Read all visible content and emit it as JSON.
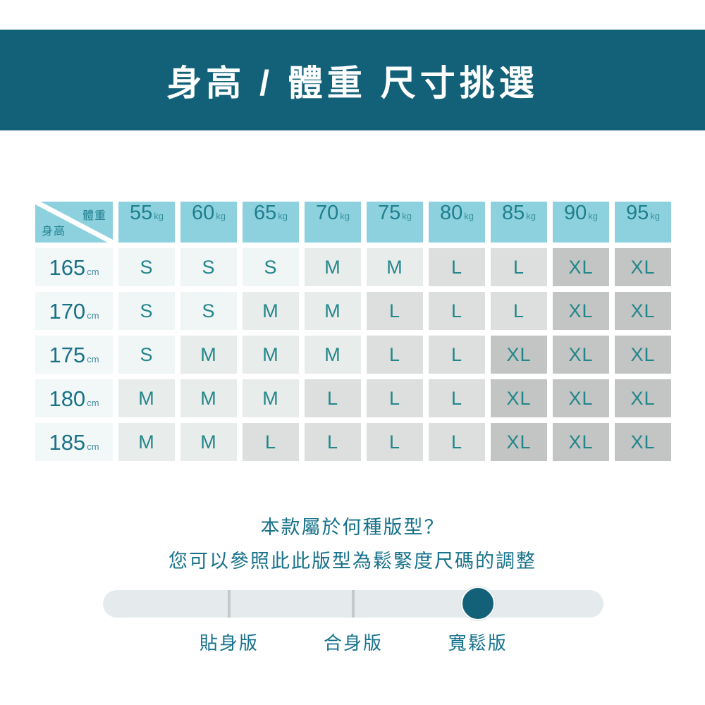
{
  "banner": {
    "title": "身高 / 體重 尺寸挑選"
  },
  "table": {
    "corner": {
      "top_right": "體重",
      "bottom_left": "身高"
    },
    "weight_unit": "kg",
    "height_unit": "cm",
    "weights": [
      "55",
      "60",
      "65",
      "70",
      "75",
      "80",
      "85",
      "90",
      "95"
    ],
    "rows": [
      {
        "height": "165",
        "sizes": [
          "S",
          "S",
          "S",
          "M",
          "M",
          "L",
          "L",
          "XL",
          "XL"
        ]
      },
      {
        "height": "170",
        "sizes": [
          "S",
          "S",
          "M",
          "M",
          "L",
          "L",
          "L",
          "XL",
          "XL"
        ]
      },
      {
        "height": "175",
        "sizes": [
          "S",
          "M",
          "M",
          "M",
          "L",
          "L",
          "XL",
          "XL",
          "XL"
        ]
      },
      {
        "height": "180",
        "sizes": [
          "M",
          "M",
          "M",
          "L",
          "L",
          "L",
          "XL",
          "XL",
          "XL"
        ]
      },
      {
        "height": "185",
        "sizes": [
          "M",
          "M",
          "L",
          "L",
          "L",
          "L",
          "XL",
          "XL",
          "XL"
        ]
      }
    ]
  },
  "note": {
    "line1": "本款屬於何種版型？",
    "line2": "您可以參照此此版型為鬆緊度尺碼的調整"
  },
  "slider": {
    "options": [
      "貼身版",
      "合身版",
      "寬鬆版"
    ],
    "selected": "寬鬆版",
    "selected_index": 2
  },
  "colors": {
    "banner_bg": "#136178",
    "banner_text": "#ffffff",
    "header_bg": "#8ed1de",
    "header_text": "#1e7f8e",
    "height_bg": "#f2f7f8",
    "height_text": "#197286",
    "size_text": "#23868a",
    "size_backgrounds": {
      "S": "#f0f5f6",
      "M": "#e8eceb",
      "L": "#dcdfde",
      "XL": "#c2c5c3"
    },
    "note_text": "#17718a",
    "slider_track": "#e5ebec",
    "slider_divider": "#c6c9ca",
    "slider_knob": "#136178",
    "slider_label_text": "#15718c"
  },
  "chart_data": {
    "type": "table",
    "title": "身高 / 體重 尺寸挑選",
    "col_axis_label": "體重",
    "row_axis_label": "身高",
    "columns": [
      "55kg",
      "60kg",
      "65kg",
      "70kg",
      "75kg",
      "80kg",
      "85kg",
      "90kg",
      "95kg"
    ],
    "rows": [
      "165cm",
      "170cm",
      "175cm",
      "180cm",
      "185cm"
    ],
    "values": [
      [
        "S",
        "S",
        "S",
        "M",
        "M",
        "L",
        "L",
        "XL",
        "XL"
      ],
      [
        "S",
        "S",
        "M",
        "M",
        "L",
        "L",
        "L",
        "XL",
        "XL"
      ],
      [
        "S",
        "M",
        "M",
        "M",
        "L",
        "L",
        "XL",
        "XL",
        "XL"
      ],
      [
        "M",
        "M",
        "M",
        "L",
        "L",
        "L",
        "XL",
        "XL",
        "XL"
      ],
      [
        "M",
        "M",
        "L",
        "L",
        "L",
        "L",
        "XL",
        "XL",
        "XL"
      ]
    ],
    "legend_note": "cell shading darkens with size: S lightest, XL darkest",
    "footer_options": [
      "貼身版",
      "合身版",
      "寬鬆版"
    ],
    "footer_selected": "寬鬆版"
  }
}
